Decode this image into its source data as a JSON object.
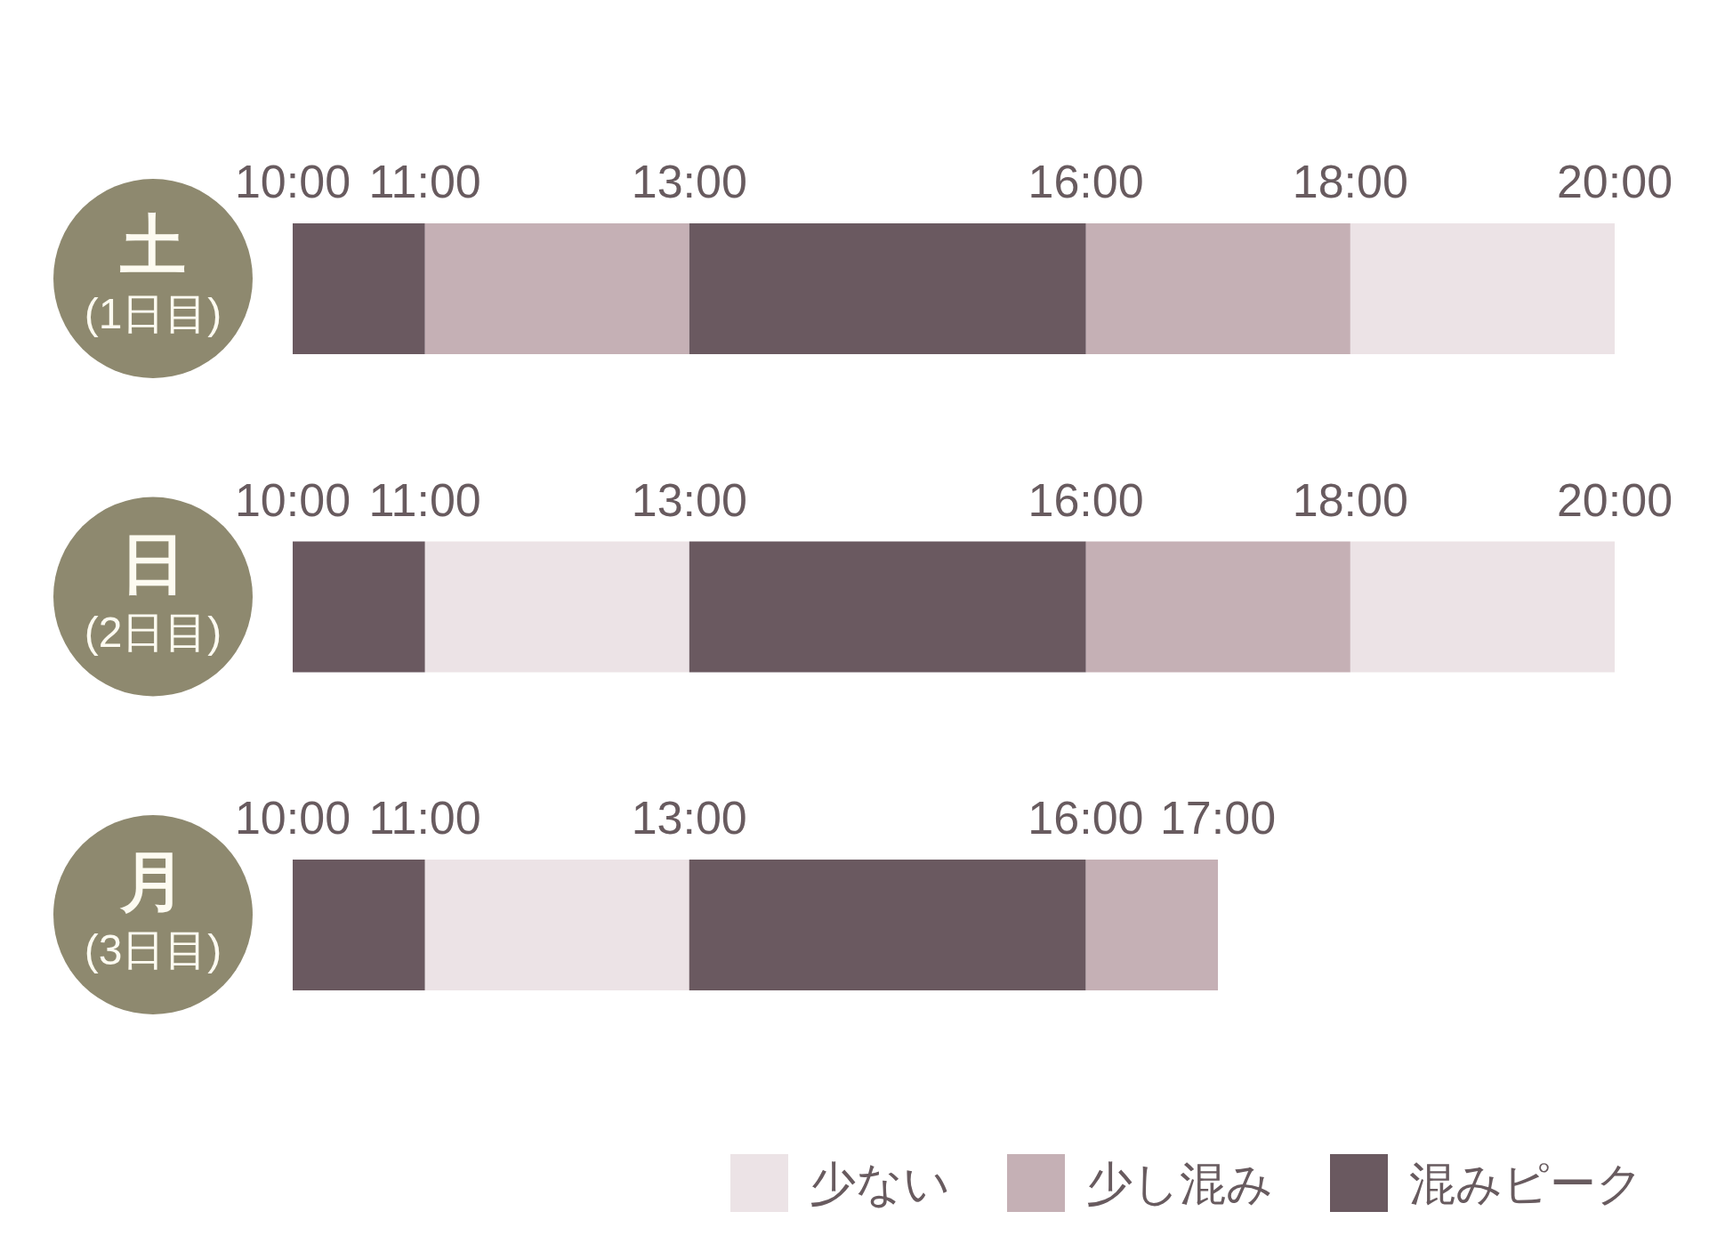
{
  "chart_data": [
    {
      "type": "bar",
      "orientation": "horizontal",
      "categories": [
        "土(1日目)"
      ],
      "xlim": [
        10,
        20
      ],
      "xticks": [
        {
          "value": 10,
          "label": "10:00"
        },
        {
          "value": 11,
          "label": "11:00"
        },
        {
          "value": 13,
          "label": "13:00"
        },
        {
          "value": 16,
          "label": "16:00"
        },
        {
          "value": 18,
          "label": "18:00"
        },
        {
          "value": 20,
          "label": "20:00"
        }
      ],
      "series": [
        {
          "color": "#ece3e6",
          "base": [
            18
          ],
          "values": [
            2
          ]
        },
        {
          "color": "#c5b0b5",
          "base": [
            11
          ],
          "values": [
            2
          ]
        },
        {
          "color": "#c5b0b5",
          "base": [
            16
          ],
          "values": [
            2
          ]
        },
        {
          "color": "#6a5960",
          "base": [
            10
          ],
          "values": [
            1
          ]
        },
        {
          "color": "#6a5960",
          "base": [
            13
          ],
          "values": [
            3
          ]
        }
      ]
    },
    {
      "type": "bar",
      "orientation": "horizontal",
      "categories": [
        "日(2日目)"
      ],
      "xlim": [
        10,
        20
      ],
      "xticks": [
        {
          "value": 10,
          "label": "10:00"
        },
        {
          "value": 11,
          "label": "11:00"
        },
        {
          "value": 13,
          "label": "13:00"
        },
        {
          "value": 16,
          "label": "16:00"
        },
        {
          "value": 18,
          "label": "18:00"
        },
        {
          "value": 20,
          "label": "20:00"
        }
      ],
      "series": [
        {
          "color": "#ece3e6",
          "base": [
            11
          ],
          "values": [
            2
          ]
        },
        {
          "color": "#ece3e6",
          "base": [
            18
          ],
          "values": [
            2
          ]
        },
        {
          "color": "#c5b0b5",
          "base": [
            16
          ],
          "values": [
            2
          ]
        },
        {
          "color": "#6a5960",
          "base": [
            10
          ],
          "values": [
            1
          ]
        },
        {
          "color": "#6a5960",
          "base": [
            13
          ],
          "values": [
            3
          ]
        }
      ]
    },
    {
      "type": "bar",
      "orientation": "horizontal",
      "categories": [
        "月(3日目)"
      ],
      "xlim": [
        10,
        17
      ],
      "xticks": [
        {
          "value": 10,
          "label": "10:00"
        },
        {
          "value": 11,
          "label": "11:00"
        },
        {
          "value": 13,
          "label": "13:00"
        },
        {
          "value": 16,
          "label": "16:00"
        },
        {
          "value": 17,
          "label": "17:00"
        }
      ],
      "series": [
        {
          "name": "少ない",
          "color": "#ece3e6",
          "base": [
            11
          ],
          "values": [
            2
          ]
        },
        {
          "name": "少し混み",
          "color": "#c5b0b5",
          "base": [
            16
          ],
          "values": [
            1
          ]
        },
        {
          "name": "混みピーク",
          "color": "#6a5960",
          "base": [
            10
          ],
          "values": [
            1
          ]
        },
        {
          "color": "#6a5960",
          "base": [
            13
          ],
          "values": [
            3
          ]
        }
      ],
      "legend": "bottom right"
    }
  ]
}
